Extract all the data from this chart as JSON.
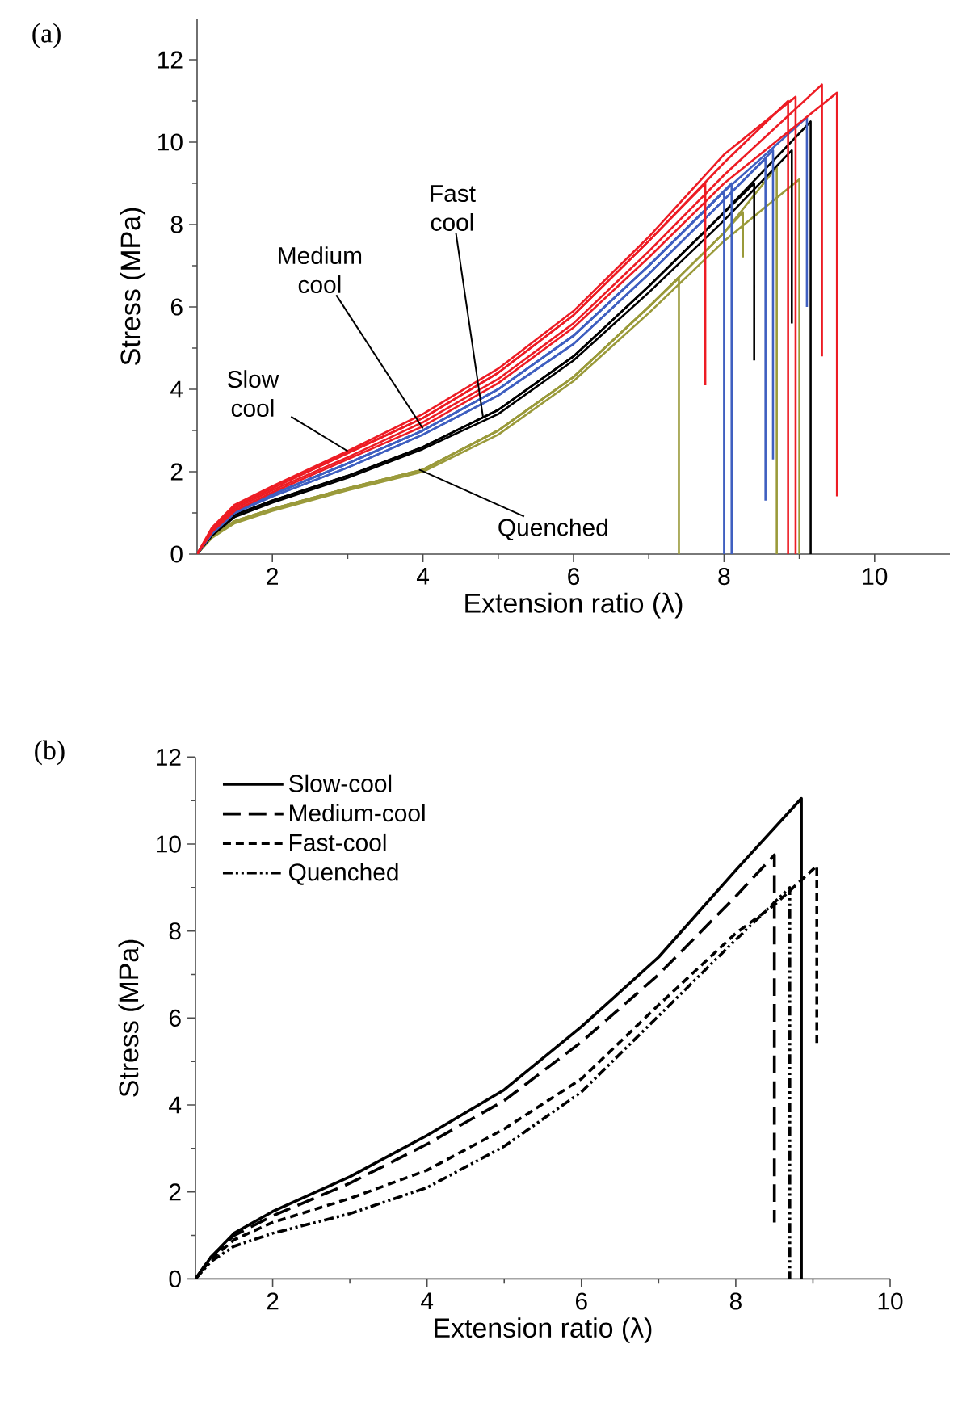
{
  "chart_data": [
    {
      "type": "line",
      "title": "(a)",
      "xlabel": "Extension ratio (λ)",
      "ylabel": "Stress (MPa)",
      "xlim": [
        1,
        11
      ],
      "ylim": [
        0,
        13
      ],
      "xticks": [
        2,
        4,
        6,
        8,
        10
      ],
      "yticks": [
        0,
        2,
        4,
        6,
        8,
        10,
        12
      ],
      "annotations": [
        {
          "text": "Slow cool",
          "x": 3.0,
          "y": 2.5
        },
        {
          "text": "Medium cool",
          "x": 4.0,
          "y": 3.05
        },
        {
          "text": "Fast cool",
          "x": 4.8,
          "y": 3.3
        },
        {
          "text": "Quenched",
          "x": 3.95,
          "y": 2.05
        }
      ],
      "series": [
        {
          "color": "#9a9a3a",
          "x": [
            1,
            1.2,
            1.5,
            2,
            3,
            4,
            5,
            6,
            7,
            7.4,
            7.4
          ],
          "values": [
            0,
            0.45,
            0.8,
            1.1,
            1.6,
            2.05,
            3.0,
            4.3,
            6.0,
            6.7,
            0
          ]
        },
        {
          "color": "#9a9a3a",
          "x": [
            1,
            1.2,
            1.5,
            2,
            3,
            4,
            5,
            6,
            7,
            8,
            8.7,
            8.7
          ],
          "values": [
            0,
            0.45,
            0.8,
            1.1,
            1.6,
            2.05,
            3.0,
            4.3,
            6.0,
            7.8,
            9.4,
            0
          ]
        },
        {
          "color": "#9a9a3a",
          "x": [
            1,
            1.2,
            1.5,
            2,
            3,
            4,
            5,
            6,
            7,
            8,
            9.0,
            9.0
          ],
          "values": [
            0,
            0.4,
            0.75,
            1.05,
            1.55,
            2.0,
            2.9,
            4.2,
            5.85,
            7.6,
            9.1,
            0
          ]
        },
        {
          "color": "#9a9a3a",
          "x": [
            1,
            1.2,
            1.5,
            2,
            3,
            4,
            5,
            6,
            7,
            8,
            8.25,
            8.25
          ],
          "values": [
            0,
            0.45,
            0.8,
            1.1,
            1.6,
            2.05,
            3.0,
            4.3,
            6.0,
            7.8,
            8.3,
            7.2
          ]
        },
        {
          "color": "#000000",
          "x": [
            1,
            1.2,
            1.5,
            2,
            3,
            4,
            5,
            6,
            7,
            8,
            9.15,
            9.15
          ],
          "values": [
            0,
            0.5,
            0.95,
            1.3,
            1.9,
            2.6,
            3.5,
            4.8,
            6.5,
            8.3,
            10.5,
            0
          ]
        },
        {
          "color": "#000000",
          "x": [
            1,
            1.2,
            1.5,
            2,
            3,
            4,
            5,
            6,
            7,
            8.4,
            8.4
          ],
          "values": [
            0,
            0.5,
            0.95,
            1.3,
            1.9,
            2.6,
            3.5,
            4.8,
            6.5,
            9.0,
            4.7
          ]
        },
        {
          "color": "#000000",
          "x": [
            1,
            1.2,
            1.5,
            2,
            3,
            4,
            5,
            6,
            7,
            8,
            8.9,
            8.9
          ],
          "values": [
            0,
            0.45,
            0.9,
            1.25,
            1.85,
            2.55,
            3.4,
            4.7,
            6.35,
            8.1,
            9.8,
            5.6
          ]
        },
        {
          "color": "#3f5fc0",
          "x": [
            1,
            1.2,
            1.5,
            2,
            3,
            4,
            5,
            6,
            7,
            8,
            8
          ],
          "values": [
            0,
            0.55,
            1.05,
            1.45,
            2.2,
            3.0,
            4.0,
            5.3,
            7.0,
            8.8,
            0
          ]
        },
        {
          "color": "#3f5fc0",
          "x": [
            1,
            1.2,
            1.5,
            2,
            3,
            4,
            5,
            6,
            7,
            8.1,
            8.1
          ],
          "values": [
            0,
            0.55,
            1.05,
            1.45,
            2.2,
            3.0,
            4.0,
            5.3,
            7.0,
            9.0,
            0
          ]
        },
        {
          "color": "#3f5fc0",
          "x": [
            1,
            1.2,
            1.5,
            2,
            3,
            4,
            5,
            6,
            7,
            8,
            9.1,
            9.1
          ],
          "values": [
            0,
            0.55,
            1.05,
            1.45,
            2.2,
            3.0,
            4.0,
            5.3,
            7.0,
            8.8,
            10.6,
            6.0
          ]
        },
        {
          "color": "#3f5fc0",
          "x": [
            1,
            1.2,
            1.5,
            2,
            3,
            4,
            5,
            6,
            7,
            8,
            8.55,
            8.55
          ],
          "values": [
            0,
            0.5,
            1.0,
            1.4,
            2.1,
            2.9,
            3.85,
            5.1,
            6.8,
            8.6,
            9.6,
            1.3
          ]
        },
        {
          "color": "#3f5fc0",
          "x": [
            1,
            1.2,
            1.5,
            2,
            3,
            4,
            5,
            6,
            7,
            8,
            8.65,
            8.65
          ],
          "values": [
            0,
            0.5,
            1.0,
            1.4,
            2.1,
            2.9,
            3.85,
            5.1,
            6.8,
            8.6,
            9.8,
            2.3
          ]
        },
        {
          "color": "#ed1c24",
          "x": [
            1,
            1.2,
            1.5,
            2,
            3,
            4,
            5,
            6,
            7,
            8,
            8.85,
            8.85
          ],
          "values": [
            0,
            0.6,
            1.15,
            1.6,
            2.45,
            3.3,
            4.4,
            5.8,
            7.6,
            9.5,
            11.0,
            0
          ]
        },
        {
          "color": "#ed1c24",
          "x": [
            1,
            1.2,
            1.5,
            2,
            3,
            4,
            5,
            6,
            7,
            8,
            9.3,
            9.3
          ],
          "values": [
            0,
            0.55,
            1.1,
            1.55,
            2.35,
            3.2,
            4.25,
            5.6,
            7.35,
            9.2,
            11.4,
            4.8
          ]
        },
        {
          "color": "#ed1c24",
          "x": [
            1,
            1.2,
            1.5,
            2,
            3,
            4,
            5,
            6,
            7,
            8,
            9.5,
            9.5
          ],
          "values": [
            0,
            0.55,
            1.05,
            1.5,
            2.3,
            3.1,
            4.15,
            5.5,
            7.2,
            9.0,
            11.2,
            1.4
          ]
        },
        {
          "color": "#ed1c24",
          "x": [
            1,
            1.2,
            1.5,
            2,
            3,
            4,
            5,
            6,
            7,
            7.75,
            7.75
          ],
          "values": [
            0,
            0.6,
            1.15,
            1.6,
            2.45,
            3.3,
            4.4,
            5.8,
            7.6,
            9.0,
            4.1
          ]
        },
        {
          "color": "#ed1c24",
          "x": [
            1,
            1.2,
            1.5,
            2,
            3,
            4,
            5,
            6,
            7,
            8,
            8.95,
            8.95
          ],
          "values": [
            0,
            0.65,
            1.2,
            1.65,
            2.5,
            3.4,
            4.5,
            5.9,
            7.7,
            9.7,
            11.1,
            0
          ]
        }
      ]
    },
    {
      "type": "line",
      "title": "(b)",
      "xlabel": "Extension ratio (λ)",
      "ylabel": "Stress (MPa)",
      "xlim": [
        1,
        10
      ],
      "ylim": [
        0,
        12
      ],
      "xticks": [
        2,
        4,
        6,
        8,
        10
      ],
      "yticks": [
        0,
        2,
        4,
        6,
        8,
        10,
        12
      ],
      "legend": "top left",
      "series": [
        {
          "name": "Slow-cool",
          "color": "#000000",
          "line_style": "solid",
          "x": [
            1,
            1.2,
            1.5,
            2,
            3,
            4,
            5,
            6,
            7,
            8,
            8.85,
            8.85
          ],
          "values": [
            0,
            0.5,
            1.05,
            1.55,
            2.35,
            3.3,
            4.35,
            5.8,
            7.4,
            9.4,
            11.05,
            0
          ]
        },
        {
          "name": "Medium-cool",
          "color": "#000000",
          "line_style": "longdashed",
          "x": [
            1,
            1.2,
            1.5,
            2,
            3,
            4,
            5,
            6,
            7,
            8,
            8.5,
            8.5
          ],
          "values": [
            0,
            0.5,
            1.0,
            1.45,
            2.2,
            3.1,
            4.1,
            5.45,
            7.0,
            8.8,
            9.75,
            1.3
          ]
        },
        {
          "name": "Fast-cool",
          "color": "#000000",
          "line_style": "dashed",
          "x": [
            1,
            1.2,
            1.5,
            2,
            3,
            4,
            5,
            6,
            7,
            8,
            8.5,
            9.05,
            9.05
          ],
          "values": [
            0,
            0.45,
            0.9,
            1.3,
            1.85,
            2.5,
            3.45,
            4.6,
            6.3,
            7.95,
            8.6,
            9.5,
            5.4
          ]
        },
        {
          "name": "Quenched",
          "color": "#000000",
          "line_style": "dashdotdotted",
          "x": [
            1,
            1.2,
            1.5,
            2,
            3,
            4,
            5,
            6,
            7,
            8,
            8.7,
            8.7
          ],
          "values": [
            0,
            0.4,
            0.75,
            1.05,
            1.5,
            2.1,
            3.05,
            4.3,
            6.05,
            7.8,
            9.0,
            0
          ]
        }
      ]
    }
  ]
}
